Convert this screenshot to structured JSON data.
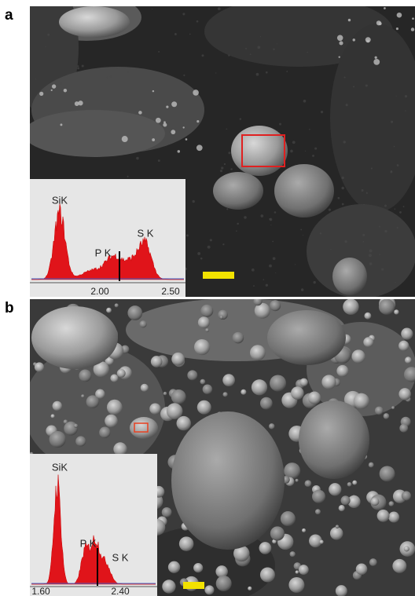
{
  "panels": [
    {
      "label": "a",
      "spectrum": {
        "peaks": [
          "SiK",
          "P K",
          "S K"
        ],
        "ticks": [
          "2.00",
          "2.50"
        ]
      }
    },
    {
      "label": "b",
      "spectrum": {
        "peaks": [
          "SiK",
          "P K",
          "S K"
        ],
        "ticks": [
          "1.60",
          "2.40"
        ]
      }
    }
  ]
}
